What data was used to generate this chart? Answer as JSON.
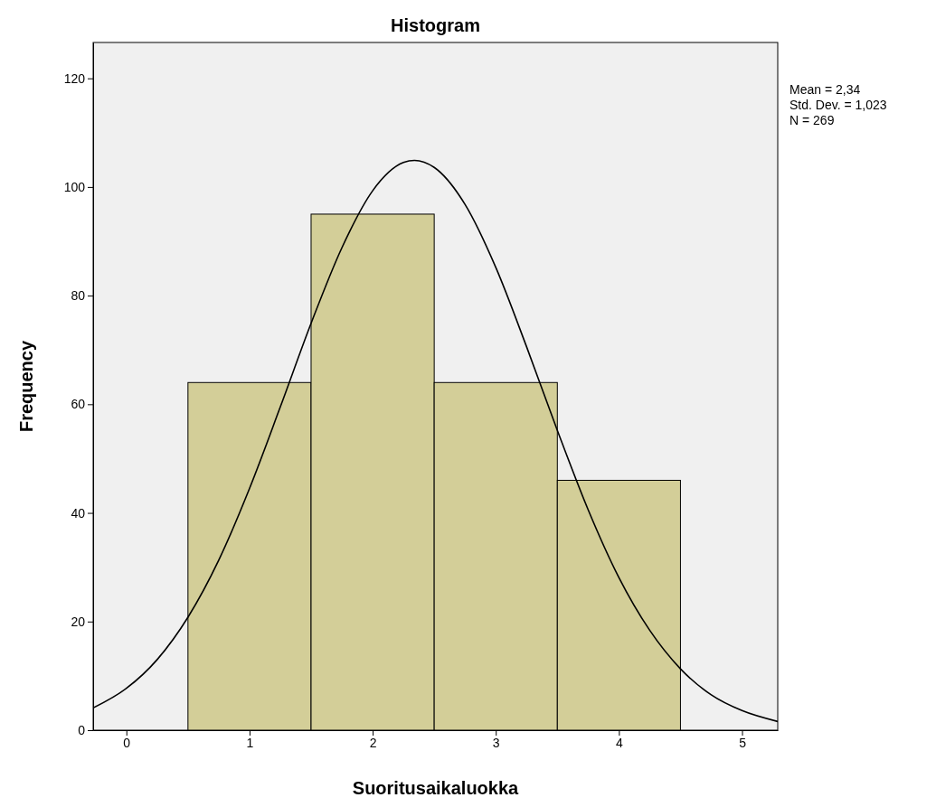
{
  "chart_data": {
    "type": "histogram",
    "title": "Histogram",
    "xlabel": "Suoritusaikaluokka",
    "ylabel": "Frequency",
    "bins": [
      0.5,
      1.5,
      2.5,
      3.5,
      4.5
    ],
    "values": [
      64,
      95,
      64,
      46
    ],
    "color": "#d3ce98",
    "series": [
      {
        "type": "line",
        "color": "#000000",
        "x": [
          -0.27,
          0,
          0.25,
          0.5,
          0.75,
          1,
          1.25,
          1.5,
          1.75,
          2,
          2.25,
          2.34,
          2.5,
          2.75,
          3,
          3.25,
          3.5,
          3.75,
          4,
          4.25,
          4.5,
          4.75,
          5,
          5.29
        ],
        "values": [
          4.1,
          7.7,
          13,
          20.8,
          31.3,
          44.5,
          59.5,
          74.9,
          88.8,
          99.3,
          104.5,
          104.9,
          103.6,
          96.8,
          85.2,
          70.6,
          55.2,
          40.6,
          28.1,
          18.4,
          11.3,
          6.5,
          3.6,
          1.6
        ]
      }
    ],
    "xlim": [
      -0.27,
      5.29
    ],
    "xticks": [
      0,
      1,
      2,
      3,
      4,
      5
    ],
    "ylim": [
      0,
      126.6
    ],
    "yticks": [
      0,
      20,
      40,
      60,
      80,
      100,
      120
    ],
    "annotations": [
      "Mean = 2,34",
      "Std. Dev. = 1,023",
      "N = 269"
    ]
  }
}
